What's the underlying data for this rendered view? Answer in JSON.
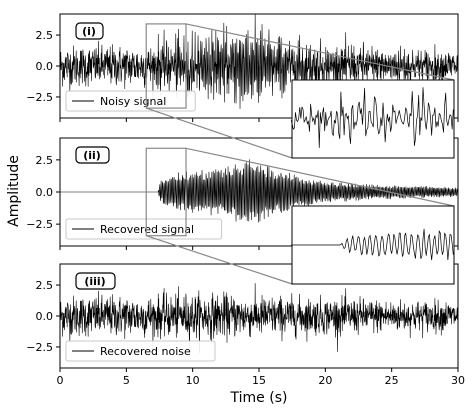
{
  "figure": {
    "ylabel": "Amplitude",
    "xlabel": "Time (s)",
    "xlim": [
      0,
      30
    ],
    "xticks": [
      0,
      5,
      10,
      15,
      20,
      25,
      30
    ]
  },
  "chart_data": [
    {
      "type": "line",
      "panel_label": "(i)",
      "legend": "Noisy signal",
      "legend_position": "lower-left",
      "ylim": [
        -4.2,
        4.2
      ],
      "yticks": [
        2.5,
        0.0,
        -2.5
      ],
      "xlim": [
        0,
        30
      ],
      "series_color": "#000000",
      "envelope": {
        "x": [
          0,
          4,
          6,
          7.5,
          8.5,
          10,
          12,
          14,
          15,
          17,
          19,
          21,
          23,
          26,
          30
        ],
        "noise_std": [
          0.9,
          0.9,
          0.9,
          0.9,
          0.95,
          1.0,
          0.95,
          0.9,
          0.9,
          0.85,
          0.8,
          0.8,
          0.75,
          0.7,
          0.65
        ],
        "signal_amp": [
          0,
          0,
          0,
          0.7,
          1.2,
          1.3,
          1.5,
          2.0,
          1.9,
          1.2,
          0.8,
          0.6,
          0.5,
          0.4,
          0.3
        ]
      },
      "zoom_window": {
        "x": [
          6.5,
          9.5
        ],
        "y": [
          -3.4,
          3.4
        ]
      }
    },
    {
      "type": "line",
      "panel_label": "(ii)",
      "legend": "Recovered signal",
      "legend_position": "lower-left",
      "ylim": [
        -4.2,
        4.2
      ],
      "yticks": [
        2.5,
        0.0,
        -2.5
      ],
      "xlim": [
        0,
        30
      ],
      "series_color": "#000000",
      "envelope": {
        "x": [
          0,
          6,
          7.4,
          7.5,
          8.5,
          10,
          12,
          14,
          15,
          17,
          19,
          21,
          23,
          26,
          30
        ],
        "noise_std": [
          0,
          0,
          0,
          0,
          0,
          0,
          0,
          0,
          0,
          0,
          0,
          0,
          0,
          0,
          0
        ],
        "signal_amp": [
          0,
          0,
          0,
          0.7,
          1.2,
          1.3,
          1.5,
          2.0,
          1.9,
          1.2,
          0.8,
          0.6,
          0.5,
          0.4,
          0.3
        ]
      },
      "zoom_window": {
        "x": [
          6.5,
          9.5
        ],
        "y": [
          -3.4,
          3.4
        ]
      }
    },
    {
      "type": "line",
      "panel_label": "(iii)",
      "legend": "Recovered noise",
      "legend_position": "lower-left",
      "ylim": [
        -4.2,
        4.2
      ],
      "yticks": [
        2.5,
        0.0,
        -2.5
      ],
      "xlim": [
        0,
        30
      ],
      "series_color": "#000000",
      "envelope": {
        "x": [
          0,
          4,
          6,
          7.5,
          8.5,
          10,
          12,
          14,
          15,
          17,
          19,
          21,
          23,
          26,
          30
        ],
        "noise_std": [
          0.9,
          0.9,
          0.9,
          0.9,
          0.95,
          1.0,
          0.95,
          0.9,
          0.9,
          0.85,
          0.8,
          0.8,
          0.75,
          0.7,
          0.65
        ],
        "signal_amp": [
          0,
          0,
          0,
          0,
          0,
          0,
          0,
          0,
          0,
          0,
          0,
          0,
          0,
          0,
          0
        ]
      }
    }
  ]
}
